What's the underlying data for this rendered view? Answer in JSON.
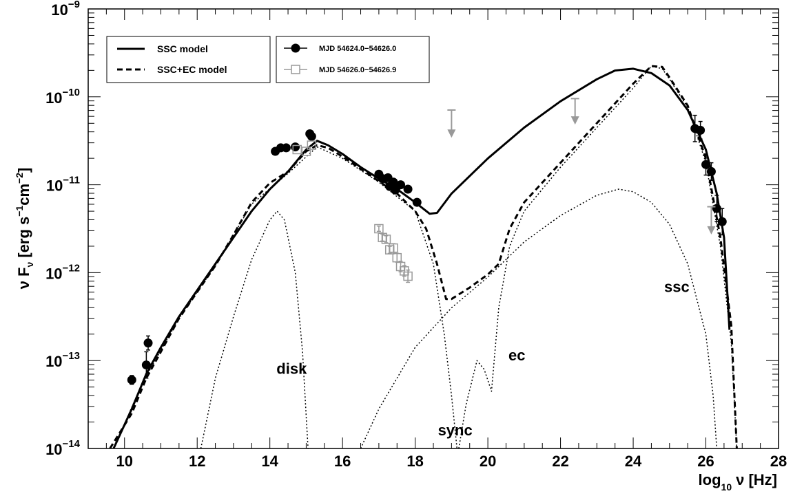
{
  "chart_data": {
    "type": "scatter",
    "title": "",
    "xlabel": "log",
    "xlabel_sub": "10",
    "xlabel_rest": "ν [Hz]",
    "ylabel_parts": [
      "ν F",
      "ν",
      " [erg s",
      "−1",
      "cm",
      "−2",
      "]"
    ],
    "xlim": [
      9,
      28
    ],
    "ylim_log10": [
      -14,
      -9
    ],
    "x_ticks": [
      10,
      12,
      14,
      16,
      18,
      20,
      22,
      24,
      26,
      28
    ],
    "x_tick_labels": [
      "10",
      "12",
      "14",
      "16",
      "18",
      "20",
      "22",
      "24",
      "26",
      "28"
    ],
    "y_ticks_log10": [
      -14,
      -13,
      -12,
      -11,
      -10,
      -9
    ],
    "y_tick_labels": [
      {
        "base": "10",
        "exp": "−14"
      },
      {
        "base": "10",
        "exp": "−13"
      },
      {
        "base": "10",
        "exp": "−12"
      },
      {
        "base": "10",
        "exp": "−11"
      },
      {
        "base": "10",
        "exp": "−10"
      },
      {
        "base": "10",
        "exp": "−9"
      }
    ],
    "legend_models": {
      "placement": "top-left",
      "entries": [
        {
          "name": "SSC model",
          "style": "solid"
        },
        {
          "name": "SSC+EC model",
          "style": "dashed"
        }
      ]
    },
    "legend_data": {
      "placement": "top-left",
      "entries": [
        {
          "name": "MJD 54624.0−54626.0",
          "marker": "filled-circle",
          "color": "#000000"
        },
        {
          "name": "MJD 54626.0−54626.9",
          "marker": "open-square",
          "color": "#999999"
        }
      ]
    },
    "curve_labels": [
      {
        "text": "disk",
        "x": 14.6,
        "y_log": -13.15
      },
      {
        "text": "sync",
        "x": 19.1,
        "y_log": -13.85
      },
      {
        "text": "ec",
        "x": 20.8,
        "y_log": -13.0
      },
      {
        "text": "ssc",
        "x": 25.2,
        "y_log": -12.22
      }
    ],
    "series": [
      {
        "name": "SSC model",
        "kind": "line",
        "style": "solid",
        "color": "#000000",
        "points": [
          [
            9.7,
            -14.0
          ],
          [
            10.2,
            -13.55
          ],
          [
            10.6,
            -13.15
          ],
          [
            11.0,
            -12.85
          ],
          [
            11.5,
            -12.5
          ],
          [
            12.0,
            -12.2
          ],
          [
            12.5,
            -11.9
          ],
          [
            13.0,
            -11.6
          ],
          [
            13.5,
            -11.3
          ],
          [
            14.0,
            -11.05
          ],
          [
            14.5,
            -10.85
          ],
          [
            15.0,
            -10.6
          ],
          [
            15.3,
            -10.5
          ],
          [
            15.6,
            -10.55
          ],
          [
            16.0,
            -10.65
          ],
          [
            16.5,
            -10.8
          ],
          [
            17.0,
            -10.93
          ],
          [
            17.5,
            -11.05
          ],
          [
            18.0,
            -11.2
          ],
          [
            18.4,
            -11.33
          ],
          [
            18.6,
            -11.32
          ],
          [
            19.0,
            -11.1
          ],
          [
            20.0,
            -10.7
          ],
          [
            21.0,
            -10.35
          ],
          [
            22.0,
            -10.05
          ],
          [
            23.0,
            -9.8
          ],
          [
            23.5,
            -9.7
          ],
          [
            24.0,
            -9.68
          ],
          [
            24.5,
            -9.73
          ],
          [
            25.0,
            -9.87
          ],
          [
            25.5,
            -10.15
          ],
          [
            26.0,
            -10.6
          ],
          [
            26.3,
            -11.1
          ],
          [
            26.5,
            -11.6
          ],
          [
            26.6,
            -12.3
          ],
          [
            26.65,
            -12.65
          ]
        ]
      },
      {
        "name": "SSC+EC model",
        "kind": "line",
        "style": "dashed",
        "color": "#000000",
        "points": [
          [
            9.6,
            -14.0
          ],
          [
            10.2,
            -13.6
          ],
          [
            10.6,
            -13.2
          ],
          [
            11.0,
            -12.9
          ],
          [
            11.5,
            -12.52
          ],
          [
            12.0,
            -12.22
          ],
          [
            12.5,
            -11.92
          ],
          [
            13.0,
            -11.57
          ],
          [
            13.5,
            -11.2
          ],
          [
            14.0,
            -10.98
          ],
          [
            14.5,
            -10.85
          ],
          [
            15.0,
            -10.62
          ],
          [
            15.3,
            -10.55
          ],
          [
            15.6,
            -10.58
          ],
          [
            16.0,
            -10.68
          ],
          [
            16.5,
            -10.82
          ],
          [
            17.0,
            -10.96
          ],
          [
            17.5,
            -11.1
          ],
          [
            18.0,
            -11.3
          ],
          [
            18.3,
            -11.5
          ],
          [
            18.6,
            -11.9
          ],
          [
            18.85,
            -12.3
          ],
          [
            19.0,
            -12.3
          ],
          [
            19.5,
            -12.17
          ],
          [
            20.0,
            -12.02
          ],
          [
            20.3,
            -11.9
          ],
          [
            20.6,
            -11.5
          ],
          [
            21.0,
            -11.2
          ],
          [
            22.0,
            -10.75
          ],
          [
            23.0,
            -10.3
          ],
          [
            24.0,
            -9.85
          ],
          [
            24.5,
            -9.65
          ],
          [
            24.8,
            -9.66
          ],
          [
            25.0,
            -9.78
          ],
          [
            25.5,
            -10.1
          ],
          [
            26.0,
            -10.7
          ],
          [
            26.4,
            -11.6
          ],
          [
            26.7,
            -12.6
          ],
          [
            26.85,
            -14.0
          ]
        ]
      },
      {
        "name": "disk",
        "kind": "line",
        "style": "dotted",
        "color": "#000000",
        "points": [
          [
            12.1,
            -14.0
          ],
          [
            12.5,
            -13.2
          ],
          [
            13.0,
            -12.5
          ],
          [
            13.5,
            -11.85
          ],
          [
            14.0,
            -11.4
          ],
          [
            14.2,
            -11.3
          ],
          [
            14.4,
            -11.4
          ],
          [
            14.7,
            -12.0
          ],
          [
            14.9,
            -12.9
          ],
          [
            15.05,
            -14.0
          ]
        ]
      },
      {
        "name": "sync",
        "kind": "line",
        "style": "dotted",
        "color": "#000000",
        "points": [
          [
            9.7,
            -14.0
          ],
          [
            10.5,
            -13.25
          ],
          [
            11.5,
            -12.52
          ],
          [
            12.5,
            -11.92
          ],
          [
            13.5,
            -11.22
          ],
          [
            14.5,
            -10.87
          ],
          [
            15.3,
            -10.57
          ],
          [
            16.0,
            -10.7
          ],
          [
            17.0,
            -10.97
          ],
          [
            18.0,
            -11.3
          ],
          [
            18.5,
            -11.9
          ],
          [
            18.8,
            -12.7
          ],
          [
            19.0,
            -13.4
          ],
          [
            19.15,
            -14.0
          ]
        ]
      },
      {
        "name": "ec",
        "kind": "line",
        "style": "dotted",
        "color": "#000000",
        "points": [
          [
            19.2,
            -14.0
          ],
          [
            19.4,
            -13.5
          ],
          [
            19.7,
            -13.0
          ],
          [
            19.9,
            -13.1
          ],
          [
            20.1,
            -13.35
          ],
          [
            20.3,
            -12.4
          ],
          [
            20.6,
            -11.7
          ],
          [
            21.0,
            -11.3
          ],
          [
            22.0,
            -10.8
          ],
          [
            23.0,
            -10.35
          ],
          [
            24.0,
            -9.9
          ],
          [
            24.5,
            -9.65
          ],
          [
            24.8,
            -9.68
          ],
          [
            25.0,
            -9.8
          ],
          [
            25.5,
            -10.12
          ],
          [
            26.0,
            -10.75
          ],
          [
            26.4,
            -11.7
          ],
          [
            26.7,
            -12.8
          ],
          [
            26.85,
            -14.0
          ]
        ]
      },
      {
        "name": "ssc",
        "kind": "line",
        "style": "dotted",
        "color": "#000000",
        "points": [
          [
            16.5,
            -14.0
          ],
          [
            17.0,
            -13.55
          ],
          [
            18.0,
            -12.85
          ],
          [
            19.0,
            -12.4
          ],
          [
            20.0,
            -12.05
          ],
          [
            21.0,
            -11.65
          ],
          [
            22.0,
            -11.35
          ],
          [
            23.0,
            -11.12
          ],
          [
            23.6,
            -11.05
          ],
          [
            24.0,
            -11.08
          ],
          [
            24.5,
            -11.2
          ],
          [
            25.0,
            -11.45
          ],
          [
            25.5,
            -11.9
          ],
          [
            26.0,
            -12.7
          ],
          [
            26.2,
            -13.4
          ],
          [
            26.3,
            -14.0
          ]
        ]
      },
      {
        "name": "MJD 54624.0−54626.0",
        "kind": "points",
        "marker": "filled-circle",
        "color": "#000000",
        "points": [
          [
            10.2,
            -13.22,
            0.05
          ],
          [
            10.6,
            -13.05,
            0.15
          ],
          [
            10.65,
            -12.8,
            0.08
          ],
          [
            14.15,
            -10.62,
            0
          ],
          [
            14.3,
            -10.58,
            0
          ],
          [
            14.45,
            -10.58,
            0
          ],
          [
            14.7,
            -10.57,
            0
          ],
          [
            15.1,
            -10.42,
            0
          ],
          [
            15.15,
            -10.45,
            0
          ],
          [
            17.0,
            -10.88,
            0
          ],
          [
            17.1,
            -10.93,
            0
          ],
          [
            17.25,
            -10.92,
            0
          ],
          [
            17.3,
            -11.02,
            0
          ],
          [
            17.4,
            -10.97,
            0
          ],
          [
            17.45,
            -11.06,
            0
          ],
          [
            17.5,
            -11.02,
            0
          ],
          [
            17.6,
            -11.0,
            0
          ],
          [
            17.8,
            -11.05,
            0
          ],
          [
            18.05,
            -11.2,
            0
          ],
          [
            25.7,
            -10.36,
            0.15
          ],
          [
            25.85,
            -10.38,
            0.1
          ],
          [
            26.0,
            -10.77,
            0.12
          ],
          [
            26.15,
            -10.85,
            0.1
          ],
          [
            26.3,
            -11.27,
            0.15
          ],
          [
            26.45,
            -11.42,
            0.15
          ]
        ]
      },
      {
        "name": "MJD 54626.0−54626.9",
        "kind": "points",
        "marker": "open-square",
        "color": "#999999",
        "points": [
          [
            14.75,
            -10.6,
            0
          ],
          [
            15.0,
            -10.62,
            0
          ],
          [
            15.15,
            -10.55,
            0
          ],
          [
            17.0,
            -11.5,
            0.03
          ],
          [
            17.1,
            -11.6,
            0.04
          ],
          [
            17.2,
            -11.62,
            0.04
          ],
          [
            17.3,
            -11.74,
            0.04
          ],
          [
            17.4,
            -11.72,
            0.05
          ],
          [
            17.5,
            -11.83,
            0.05
          ],
          [
            17.6,
            -11.93,
            0.06
          ],
          [
            17.7,
            -11.98,
            0.06
          ],
          [
            17.8,
            -12.04,
            0.07
          ]
        ]
      },
      {
        "name": "upper limits",
        "kind": "upper-limits",
        "color": "#999999",
        "points": [
          [
            19.0,
            -10.15,
            -10.45
          ],
          [
            22.4,
            -10.02,
            -10.3
          ],
          [
            26.15,
            -11.25,
            -11.55
          ]
        ]
      }
    ]
  }
}
